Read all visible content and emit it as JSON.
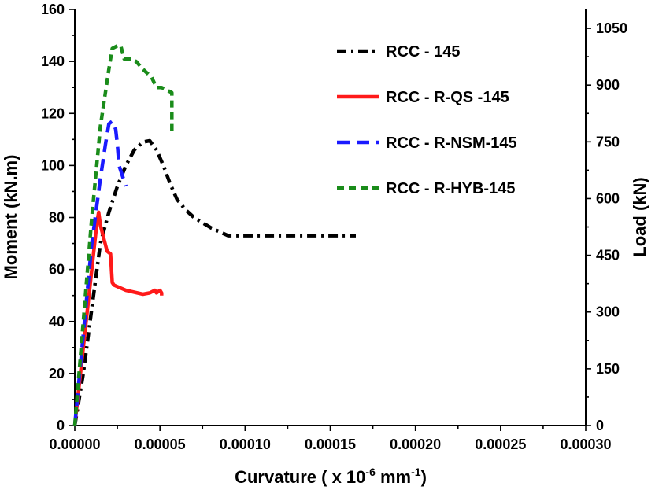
{
  "chart_data": {
    "type": "line",
    "xlabel": "Curvature ( x 10",
    "xlabel_exp1": "-6",
    "xlabel_unit": " mm",
    "xlabel_exp2": "-1",
    "xlabel_end": ")",
    "ylabel": "Moment (kN.m)",
    "y2label": "Load (kN)",
    "xlim": [
      0,
      0.0003
    ],
    "ylim": [
      0,
      160
    ],
    "y2lim": [
      0,
      1100
    ],
    "xticks": [
      0,
      5e-05,
      0.0001,
      0.00015,
      0.0002,
      0.00025,
      0.0003
    ],
    "xtick_labels": [
      "0.00000",
      "0.00005",
      "0.00010",
      "0.00015",
      "0.00020",
      "0.00025",
      "0.00030"
    ],
    "yticks": [
      0,
      20,
      40,
      60,
      80,
      100,
      120,
      140,
      160
    ],
    "ytick_labels": [
      "0",
      "20",
      "40",
      "60",
      "80",
      "100",
      "120",
      "140",
      "160"
    ],
    "y2ticks": [
      0,
      150,
      300,
      450,
      600,
      750,
      900,
      1050
    ],
    "y2tick_labels": [
      "0",
      "150",
      "300",
      "450",
      "600",
      "750",
      "900",
      "1050"
    ],
    "grid": false,
    "legend_position": "top-right",
    "series": [
      {
        "name": "RCC - 145",
        "color": "#000000",
        "dash": "12 6 3 6",
        "points": [
          [
            0,
            0
          ],
          [
            5e-06,
            20
          ],
          [
            1e-05,
            45
          ],
          [
            1.5e-05,
            70
          ],
          [
            2e-05,
            82
          ],
          [
            2.5e-05,
            92
          ],
          [
            3e-05,
            100
          ],
          [
            3.5e-05,
            106
          ],
          [
            4e-05,
            109
          ],
          [
            4.4e-05,
            109.5
          ],
          [
            4.8e-05,
            106
          ],
          [
            5.2e-05,
            100
          ],
          [
            5.6e-05,
            93
          ],
          [
            6e-05,
            87
          ],
          [
            6.5e-05,
            83
          ],
          [
            7e-05,
            80
          ],
          [
            8e-05,
            76
          ],
          [
            9e-05,
            73
          ],
          [
            0.0001,
            73
          ],
          [
            0.000165,
            73
          ]
        ]
      },
      {
        "name": "RCC - R-QS -145",
        "color": "#ff1a1a",
        "dash": "",
        "points": [
          [
            0,
            0
          ],
          [
            5e-06,
            30
          ],
          [
            1e-05,
            60
          ],
          [
            1.3e-05,
            78
          ],
          [
            1.4e-05,
            82
          ],
          [
            1.5e-05,
            77
          ],
          [
            1.7e-05,
            72
          ],
          [
            1.9e-05,
            67
          ],
          [
            2.1e-05,
            66
          ],
          [
            2.2e-05,
            55
          ],
          [
            2.3e-05,
            54
          ],
          [
            3e-05,
            52
          ],
          [
            4e-05,
            50.5
          ],
          [
            4.4e-05,
            51
          ],
          [
            4.7e-05,
            52
          ],
          [
            4.8e-05,
            51
          ],
          [
            5e-05,
            52
          ],
          [
            5.1e-05,
            51
          ],
          [
            5.1e-05,
            50
          ]
        ]
      },
      {
        "name": "RCC - R-NSM-145",
        "color": "#1a1aff",
        "dash": "16 9",
        "points": [
          [
            0,
            0
          ],
          [
            5e-06,
            35
          ],
          [
            1e-05,
            70
          ],
          [
            1.5e-05,
            95
          ],
          [
            1.8e-05,
            108
          ],
          [
            2e-05,
            116
          ],
          [
            2.2e-05,
            117
          ],
          [
            2.4e-05,
            114
          ],
          [
            2.5e-05,
            108
          ],
          [
            2.6e-05,
            100
          ],
          [
            3e-05,
            92
          ]
        ]
      },
      {
        "name": "RCC - R-HYB-145",
        "color": "#1a8c1a",
        "dash": "9 6",
        "points": [
          [
            0,
            0
          ],
          [
            5e-06,
            40
          ],
          [
            1e-05,
            80
          ],
          [
            1.5e-05,
            115
          ],
          [
            2e-05,
            137
          ],
          [
            2.2e-05,
            145
          ],
          [
            2.5e-05,
            146
          ],
          [
            2.7e-05,
            146
          ],
          [
            2.9e-05,
            141
          ],
          [
            3.3e-05,
            141
          ],
          [
            3.6e-05,
            140
          ],
          [
            4e-05,
            137
          ],
          [
            4.5e-05,
            134
          ],
          [
            4.8e-05,
            130
          ],
          [
            5.1e-05,
            130
          ],
          [
            5.4e-05,
            129
          ],
          [
            5.7e-05,
            128
          ],
          [
            5.7e-05,
            112
          ]
        ]
      }
    ]
  }
}
